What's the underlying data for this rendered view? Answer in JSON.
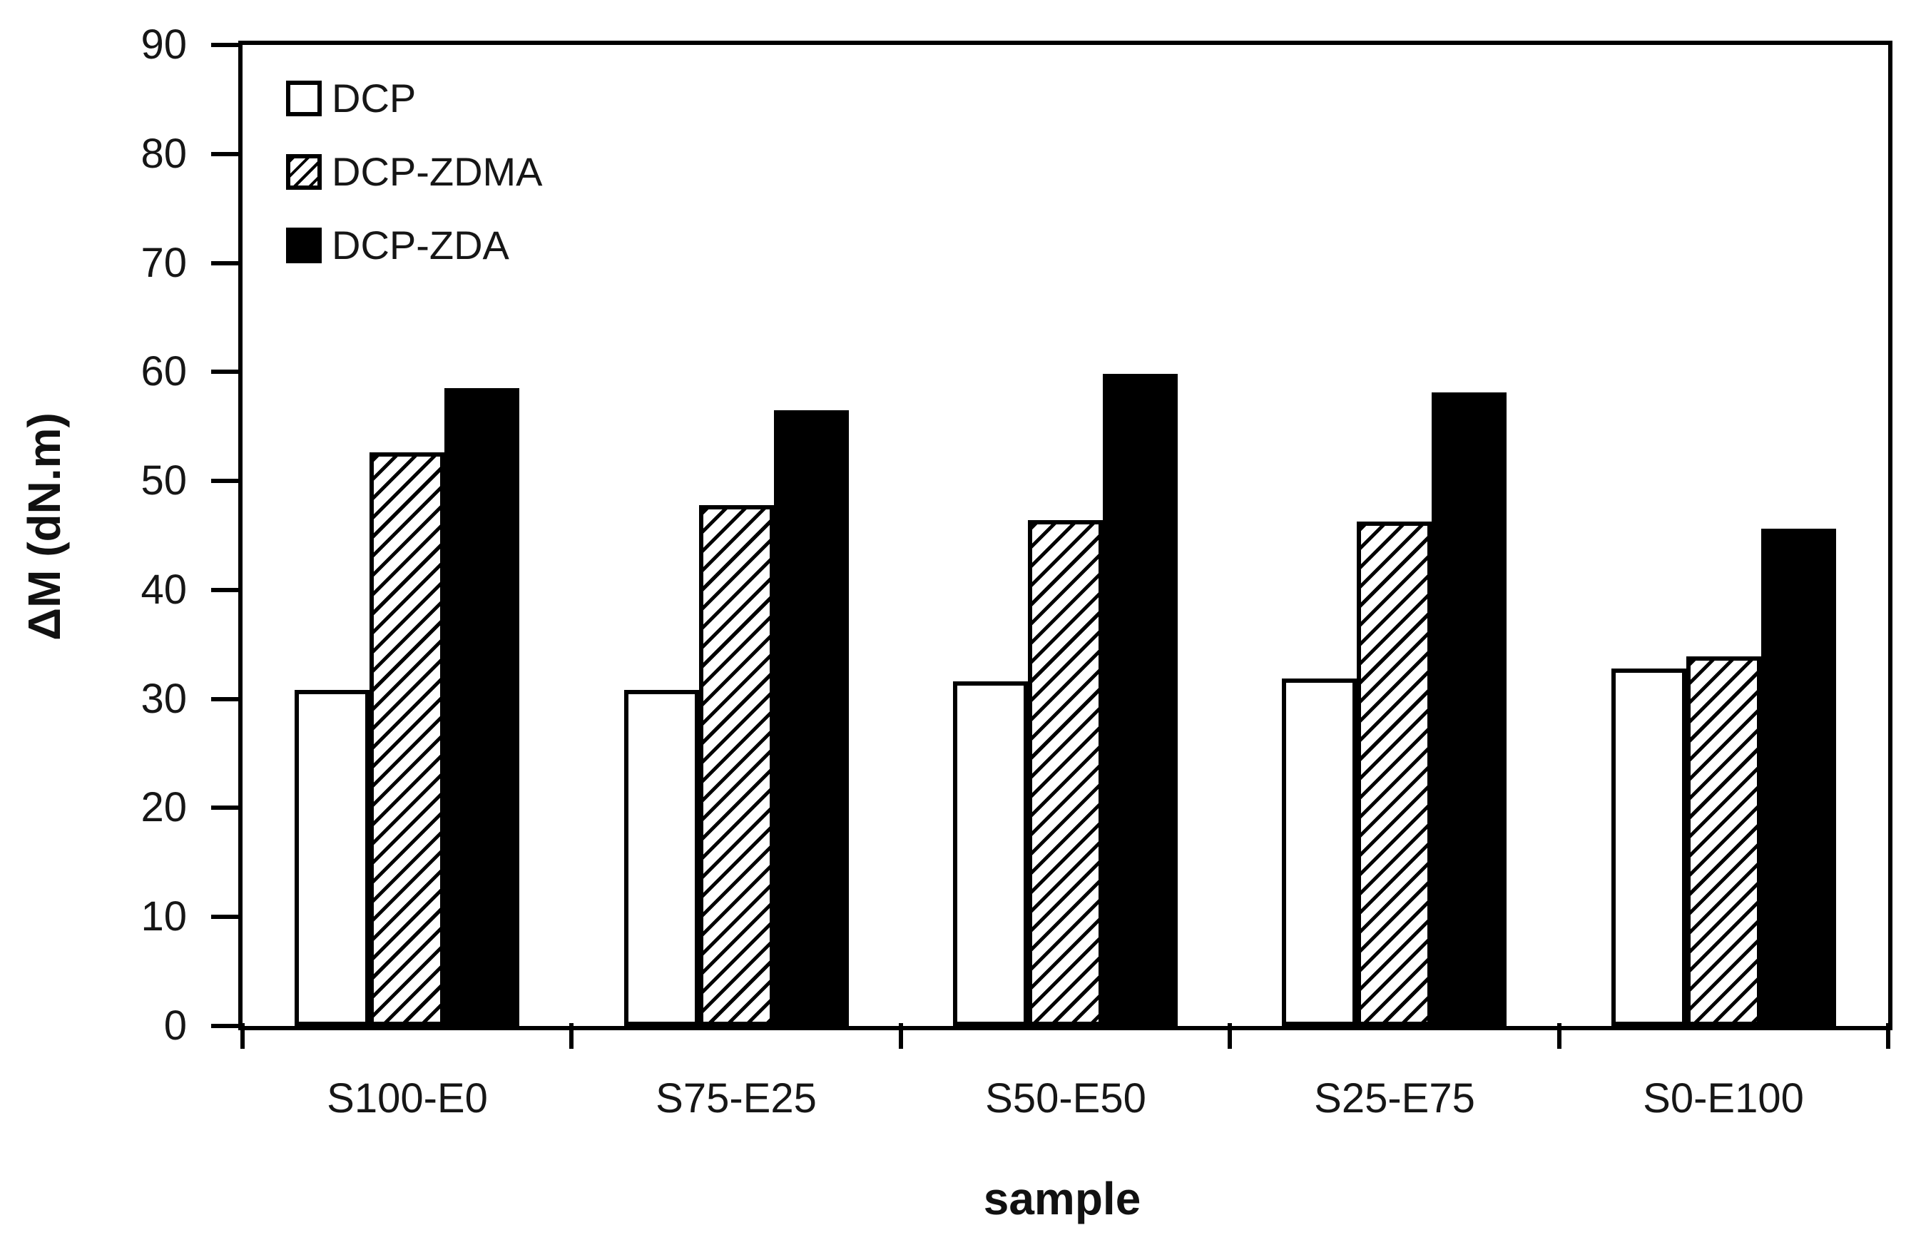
{
  "chart_data": {
    "type": "bar",
    "title": "",
    "categories": [
      "S100-E0",
      "S75-E25",
      "S50-E50",
      "S25-E75",
      "S0-E100"
    ],
    "series": [
      {
        "name": "DCP",
        "style": "white-outline",
        "values": [
          30.8,
          30.8,
          31.6,
          31.9,
          32.8
        ]
      },
      {
        "name": "DCP-ZDMA",
        "style": "diagonal-hatch",
        "values": [
          52.6,
          47.8,
          46.4,
          46.3,
          33.9
        ]
      },
      {
        "name": "DCP-ZDA",
        "style": "solid-black",
        "values": [
          58.5,
          56.5,
          59.8,
          58.1,
          45.6
        ]
      }
    ],
    "xlabel": "sample",
    "ylabel": "ΔM (dN.m)",
    "ylim": [
      0,
      90
    ],
    "ytick_step": 10,
    "y_tick_labels": [
      "90",
      "80",
      "70",
      "60",
      "50",
      "40",
      "30",
      "20",
      "10",
      "0"
    ],
    "legend_position": "upper-left-inside",
    "grid": false,
    "colors": {
      "ink": "#000000",
      "text": "#161616",
      "background": "#ffffff"
    }
  }
}
